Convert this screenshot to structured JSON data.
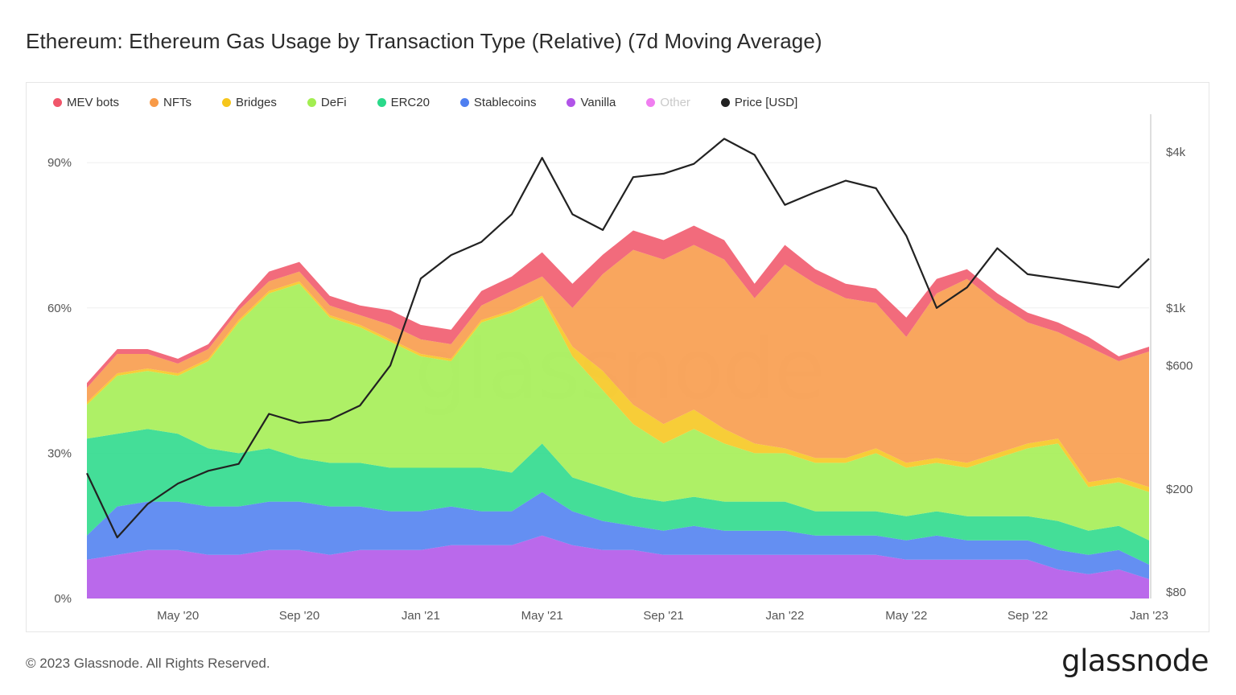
{
  "title": "Ethereum: Ethereum Gas Usage by Transaction Type (Relative) (7d Moving Average)",
  "footer": {
    "copyright": "© 2023 Glassnode. All Rights Reserved.",
    "brand": "glassnode"
  },
  "watermark": "glassnode",
  "legend": [
    {
      "label": "MEV bots",
      "color": "#f0566a",
      "muted": false
    },
    {
      "label": "NFTs",
      "color": "#f89a48",
      "muted": false
    },
    {
      "label": "Bridges",
      "color": "#f6c61c",
      "muted": false
    },
    {
      "label": "DeFi",
      "color": "#a3ee51",
      "muted": false
    },
    {
      "label": "ERC20",
      "color": "#2ad98a",
      "muted": false
    },
    {
      "label": "Stablecoins",
      "color": "#4f7ff0",
      "muted": false
    },
    {
      "label": "Vanilla",
      "color": "#b154e8",
      "muted": false
    },
    {
      "label": "Other",
      "color": "#f07ef0",
      "muted": true
    },
    {
      "label": "Price [USD]",
      "color": "#222222",
      "muted": false
    }
  ],
  "chart_data": {
    "type": "area",
    "stacked": true,
    "x": [
      "2020-02",
      "2020-03",
      "2020-04",
      "2020-05",
      "2020-06",
      "2020-07",
      "2020-08",
      "2020-09",
      "2020-10",
      "2020-11",
      "2020-12",
      "2021-01",
      "2021-02",
      "2021-03",
      "2021-04",
      "2021-05",
      "2021-06",
      "2021-07",
      "2021-08",
      "2021-09",
      "2021-10",
      "2021-11",
      "2021-12",
      "2022-01",
      "2022-02",
      "2022-03",
      "2022-04",
      "2022-05",
      "2022-06",
      "2022-07",
      "2022-08",
      "2022-09",
      "2022-10",
      "2022-11",
      "2022-12",
      "2023-01"
    ],
    "x_tick_labels": [
      "May '20",
      "Sep '20",
      "Jan '21",
      "May '21",
      "Sep '21",
      "Jan '22",
      "May '22",
      "Sep '22",
      "Jan '23"
    ],
    "x_tick_positions": [
      "2020-05",
      "2020-09",
      "2021-01",
      "2021-05",
      "2021-09",
      "2022-01",
      "2022-05",
      "2022-09",
      "2023-01"
    ],
    "y_left": {
      "ticks": [
        "0%",
        "30%",
        "60%",
        "90%"
      ],
      "tick_values": [
        0,
        30,
        60,
        90
      ],
      "range": [
        0,
        100
      ]
    },
    "y_right": {
      "ticks": [
        "$80",
        "$200",
        "$600",
        "$1k",
        "$4k"
      ],
      "tick_values": [
        80,
        200,
        600,
        1000,
        4000
      ],
      "scale": "log"
    },
    "grid": true,
    "legend_position": "top",
    "series": [
      {
        "name": "Vanilla",
        "color": "#b154e8",
        "values": [
          8,
          9,
          10,
          10,
          9,
          9,
          10,
          10,
          9,
          10,
          10,
          10,
          11,
          11,
          11,
          13,
          11,
          10,
          10,
          9,
          9,
          9,
          9,
          9,
          9,
          9,
          9,
          8,
          8,
          8,
          8,
          8,
          6,
          5,
          6,
          4
        ]
      },
      {
        "name": "Stablecoins",
        "color": "#4f7ff0",
        "values": [
          5,
          10,
          10,
          10,
          10,
          10,
          10,
          10,
          10,
          9,
          8,
          8,
          8,
          7,
          7,
          9,
          7,
          6,
          5,
          5,
          6,
          5,
          5,
          5,
          4,
          4,
          4,
          4,
          5,
          4,
          4,
          4,
          4,
          4,
          4,
          3
        ]
      },
      {
        "name": "ERC20",
        "color": "#2ad98a",
        "values": [
          20,
          15,
          15,
          14,
          12,
          11,
          11,
          9,
          9,
          9,
          9,
          9,
          8,
          9,
          8,
          10,
          7,
          7,
          6,
          6,
          6,
          6,
          6,
          6,
          5,
          5,
          5,
          5,
          5,
          5,
          5,
          5,
          6,
          5,
          5,
          5
        ]
      },
      {
        "name": "DeFi",
        "color": "#a3ee51",
        "values": [
          7,
          12,
          12,
          12,
          18,
          27,
          32,
          36,
          30,
          28,
          26,
          23,
          22,
          30,
          33,
          30,
          25,
          20,
          15,
          12,
          14,
          12,
          10,
          10,
          10,
          10,
          12,
          10,
          10,
          10,
          12,
          14,
          16,
          9,
          9,
          10
        ]
      },
      {
        "name": "Bridges",
        "color": "#f6c61c",
        "values": [
          0.5,
          0.5,
          0.5,
          0.5,
          0.5,
          0.5,
          0.5,
          0.5,
          0.5,
          0.5,
          0.5,
          0.5,
          0.5,
          0.5,
          0.5,
          0.5,
          2,
          4,
          4,
          4,
          4,
          3,
          2,
          1,
          1,
          1,
          1,
          1,
          1,
          1,
          1,
          1,
          1,
          1,
          1,
          1
        ]
      },
      {
        "name": "NFTs",
        "color": "#f89a48",
        "values": [
          3,
          4,
          3,
          2,
          2,
          2,
          2,
          2,
          2,
          2,
          3,
          3,
          3,
          3,
          4,
          4,
          8,
          20,
          32,
          34,
          34,
          35,
          30,
          38,
          36,
          33,
          30,
          26,
          34,
          38,
          31,
          25,
          22,
          28,
          24,
          28
        ]
      },
      {
        "name": "MEV bots",
        "color": "#f0566a",
        "values": [
          1,
          1,
          1,
          1,
          1,
          1,
          2,
          2,
          2,
          2,
          3,
          3,
          3,
          3,
          3,
          5,
          5,
          4,
          4,
          4,
          4,
          4,
          3,
          4,
          3,
          3,
          3,
          4,
          3,
          2,
          2,
          2,
          2,
          2,
          1,
          1
        ]
      },
      {
        "name": "Other",
        "color": "#f07ef0",
        "values": [
          0,
          0,
          0,
          0,
          0,
          0,
          0,
          0,
          0,
          0,
          0,
          0,
          0,
          0,
          0,
          0,
          0,
          0,
          0,
          0,
          0,
          0,
          0,
          0,
          0,
          0,
          0,
          0,
          0,
          0,
          0,
          0,
          0,
          0,
          0,
          0
        ]
      }
    ],
    "price_series": {
      "name": "Price [USD]",
      "color": "#222222",
      "axis": "right",
      "values": [
        230,
        130,
        175,
        210,
        235,
        250,
        390,
        360,
        370,
        420,
        600,
        1300,
        1600,
        1800,
        2300,
        3800,
        2300,
        2000,
        3200,
        3300,
        3600,
        4500,
        3900,
        2500,
        2800,
        3100,
        2900,
        1900,
        1000,
        1200,
        1700,
        1350,
        1300,
        1250,
        1200,
        1550
      ]
    }
  }
}
